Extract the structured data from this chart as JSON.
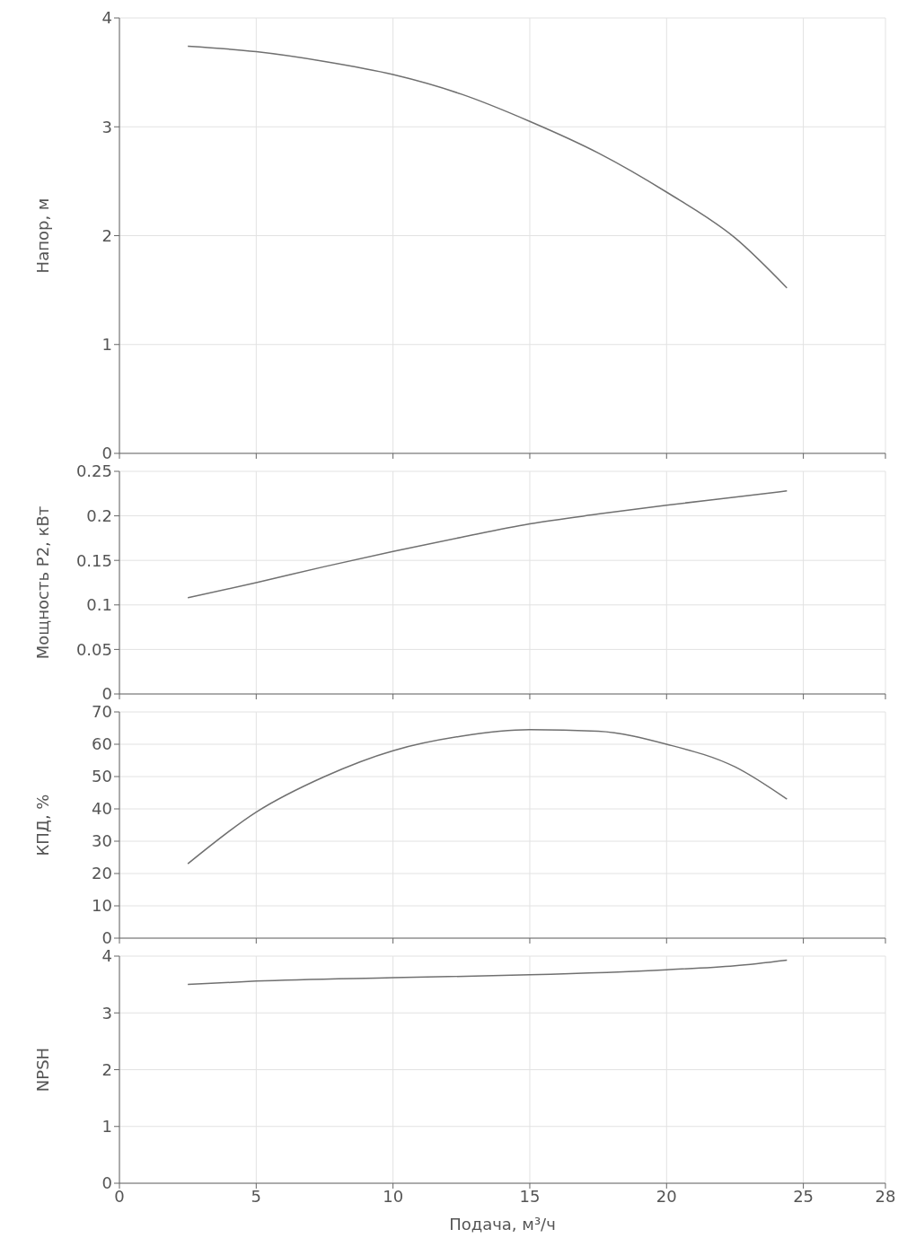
{
  "chart_data": [
    {
      "type": "line",
      "ylabel": "Напор, м",
      "x": [
        2.5,
        5,
        7.5,
        10,
        12.5,
        15,
        17.5,
        20,
        22.5,
        24.4
      ],
      "values": [
        3.74,
        3.69,
        3.6,
        3.48,
        3.3,
        3.05,
        2.76,
        2.4,
        1.98,
        1.52
      ],
      "color": "#707070",
      "xlim": [
        0,
        28
      ],
      "xticks": [
        0,
        5,
        10,
        15,
        20,
        25,
        28
      ],
      "ylim": [
        0,
        4
      ],
      "yticks": [
        0,
        1,
        2,
        3,
        4
      ],
      "grid": true,
      "tick_labels": "y",
      "line_style": "solid"
    },
    {
      "type": "line",
      "ylabel": "Мощность P2, кВт",
      "x": [
        2.5,
        5,
        7.5,
        10,
        12.5,
        15,
        17.5,
        20,
        22.5,
        24.4
      ],
      "values": [
        0.108,
        0.125,
        0.143,
        0.16,
        0.176,
        0.191,
        0.202,
        0.212,
        0.221,
        0.228
      ],
      "color": "#707070",
      "xlim": [
        0,
        28
      ],
      "xticks": [
        0,
        5,
        10,
        15,
        20,
        25,
        28
      ],
      "ylim": [
        0,
        0.25
      ],
      "yticks": [
        0,
        0.05,
        0.1,
        0.15,
        0.2,
        0.25
      ],
      "grid": true,
      "tick_labels": "y",
      "line_style": "solid"
    },
    {
      "type": "line",
      "ylabel": "КПД, %",
      "x": [
        2.5,
        5,
        7.5,
        10,
        12.5,
        15,
        17.5,
        20,
        22.5,
        24.4
      ],
      "values": [
        23,
        39,
        50,
        58,
        62.5,
        64.5,
        64,
        60,
        53,
        43
      ],
      "color": "#707070",
      "xlim": [
        0,
        28
      ],
      "xticks": [
        0,
        5,
        10,
        15,
        20,
        25,
        28
      ],
      "ylim": [
        0,
        70
      ],
      "yticks": [
        0,
        10,
        20,
        30,
        40,
        50,
        60,
        70
      ],
      "grid": true,
      "tick_labels": "y",
      "line_style": "solid"
    },
    {
      "type": "line",
      "ylabel": "NPSH",
      "xlabel": "Подача, м³/ч",
      "x": [
        2.5,
        5,
        10,
        15,
        20,
        22.5,
        24.4
      ],
      "values": [
        3.5,
        3.56,
        3.62,
        3.67,
        3.76,
        3.83,
        3.93
      ],
      "color": "#707070",
      "xlim": [
        0,
        28
      ],
      "xticks": [
        0,
        5,
        10,
        15,
        20,
        25,
        28
      ],
      "ylim": [
        0,
        4
      ],
      "yticks": [
        0,
        1,
        2,
        3,
        4
      ],
      "grid": true,
      "line_style": "solid"
    }
  ]
}
